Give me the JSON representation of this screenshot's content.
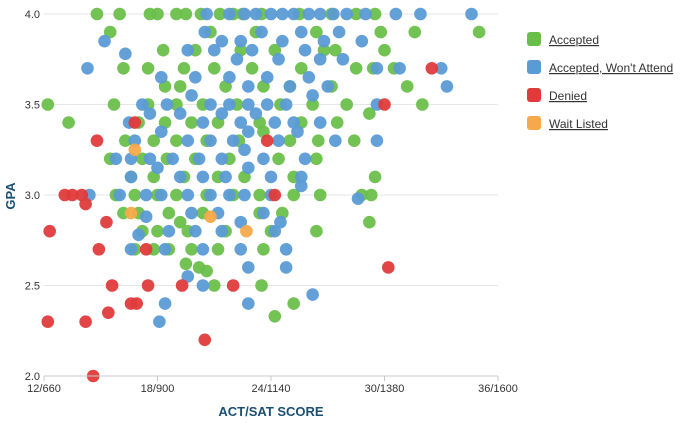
{
  "chart_data": {
    "type": "scatter",
    "title": "",
    "xlabel": "ACT/SAT SCORE",
    "ylabel": "GPA",
    "xlim": [
      12,
      36
    ],
    "ylim": [
      2.0,
      4.0
    ],
    "x_ticks": [
      {
        "value": 12,
        "label": "12/660"
      },
      {
        "value": 18,
        "label": "18/900"
      },
      {
        "value": 24,
        "label": "24/1140"
      },
      {
        "value": 30,
        "label": "30/1380"
      },
      {
        "value": 36,
        "label": "36/1600"
      }
    ],
    "y_ticks": [
      {
        "value": 2.0,
        "label": "2.0"
      },
      {
        "value": 2.5,
        "label": "2.5"
      },
      {
        "value": 3.0,
        "label": "3.0"
      },
      {
        "value": 3.5,
        "label": "3.5"
      },
      {
        "value": 4.0,
        "label": "4.0"
      }
    ],
    "grid": true,
    "legend_position": "right",
    "series": [
      {
        "name": "Accepted",
        "color": "#6abf4b",
        "points": [
          [
            12.2,
            3.5
          ],
          [
            13.3,
            3.4
          ],
          [
            14.8,
            4.0
          ],
          [
            16,
            4.0
          ],
          [
            17.6,
            4.0
          ],
          [
            18,
            4.0
          ],
          [
            19,
            4.0
          ],
          [
            19.5,
            4.0
          ],
          [
            20.3,
            4.0
          ],
          [
            21.3,
            4.0
          ],
          [
            22,
            4.0
          ],
          [
            22.5,
            4.0
          ],
          [
            23.5,
            4.0
          ],
          [
            25.5,
            4.0
          ],
          [
            27.2,
            4.0
          ],
          [
            28.5,
            4.0
          ],
          [
            29.5,
            4.0
          ],
          [
            15.5,
            3.9
          ],
          [
            20.8,
            3.9
          ],
          [
            23.2,
            3.9
          ],
          [
            26.4,
            3.9
          ],
          [
            29.8,
            3.9
          ],
          [
            31.6,
            3.9
          ],
          [
            35,
            3.9
          ],
          [
            18.3,
            3.8
          ],
          [
            20,
            3.8
          ],
          [
            22.4,
            3.8
          ],
          [
            24.2,
            3.8
          ],
          [
            26.8,
            3.8
          ],
          [
            27.4,
            3.8
          ],
          [
            30,
            3.8
          ],
          [
            16.2,
            3.7
          ],
          [
            17.5,
            3.7
          ],
          [
            19.4,
            3.7
          ],
          [
            21,
            3.7
          ],
          [
            23,
            3.7
          ],
          [
            25.6,
            3.7
          ],
          [
            28.5,
            3.7
          ],
          [
            29.4,
            3.7
          ],
          [
            30.5,
            3.7
          ],
          [
            18.4,
            3.6
          ],
          [
            19.2,
            3.6
          ],
          [
            21.6,
            3.6
          ],
          [
            23.6,
            3.6
          ],
          [
            25,
            3.6
          ],
          [
            27.2,
            3.6
          ],
          [
            31.2,
            3.6
          ],
          [
            15.7,
            3.5
          ],
          [
            17.5,
            3.5
          ],
          [
            19,
            3.5
          ],
          [
            20.4,
            3.5
          ],
          [
            22.2,
            3.5
          ],
          [
            24.5,
            3.5
          ],
          [
            26.2,
            3.5
          ],
          [
            28,
            3.5
          ],
          [
            32,
            3.5
          ],
          [
            17,
            3.4
          ],
          [
            18.4,
            3.4
          ],
          [
            19.8,
            3.4
          ],
          [
            21.2,
            3.4
          ],
          [
            23.4,
            3.4
          ],
          [
            25.6,
            3.4
          ],
          [
            27.5,
            3.4
          ],
          [
            29.2,
            3.45
          ],
          [
            16.3,
            3.3
          ],
          [
            17.8,
            3.3
          ],
          [
            19,
            3.3
          ],
          [
            20.6,
            3.3
          ],
          [
            22.3,
            3.3
          ],
          [
            23.6,
            3.35
          ],
          [
            25,
            3.3
          ],
          [
            26.5,
            3.3
          ],
          [
            28.4,
            3.3
          ],
          [
            15.5,
            3.2
          ],
          [
            17.2,
            3.2
          ],
          [
            18.5,
            3.2
          ],
          [
            20,
            3.2
          ],
          [
            21.8,
            3.2
          ],
          [
            24.4,
            3.2
          ],
          [
            26.4,
            3.2
          ],
          [
            16.6,
            3.1
          ],
          [
            17.8,
            3.1
          ],
          [
            19.4,
            3.1
          ],
          [
            21.2,
            3.1
          ],
          [
            22.6,
            3.1
          ],
          [
            25.2,
            3.1
          ],
          [
            29.5,
            3.1
          ],
          [
            15.8,
            3.0
          ],
          [
            16.8,
            3.0
          ],
          [
            18,
            3.0
          ],
          [
            19,
            3.0
          ],
          [
            20.6,
            3.0
          ],
          [
            22,
            3.0
          ],
          [
            23.4,
            3.0
          ],
          [
            25.2,
            3.0
          ],
          [
            26.6,
            3.0
          ],
          [
            28.8,
            3.0
          ],
          [
            29.3,
            3.0
          ],
          [
            16.2,
            2.9
          ],
          [
            17,
            2.9
          ],
          [
            18.6,
            2.9
          ],
          [
            19.2,
            2.85
          ],
          [
            20.4,
            2.9
          ],
          [
            23.4,
            2.9
          ],
          [
            24.6,
            2.9
          ],
          [
            29.2,
            2.85
          ],
          [
            17.2,
            2.8
          ],
          [
            18,
            2.8
          ],
          [
            19.6,
            2.8
          ],
          [
            21.6,
            2.8
          ],
          [
            24,
            2.8
          ],
          [
            26.4,
            2.8
          ],
          [
            16.8,
            2.7
          ],
          [
            17.8,
            2.7
          ],
          [
            18.6,
            2.7
          ],
          [
            19.8,
            2.7
          ],
          [
            21.2,
            2.7
          ],
          [
            23.6,
            2.7
          ],
          [
            19.5,
            2.62
          ],
          [
            20.2,
            2.6
          ],
          [
            20.6,
            2.58
          ],
          [
            21,
            2.5
          ],
          [
            23.5,
            2.5
          ],
          [
            25.2,
            2.4
          ],
          [
            24.2,
            2.33
          ]
        ]
      },
      {
        "name": "Accepted, Won't Attend",
        "color": "#5b9bd5",
        "points": [
          [
            34.6,
            4.0
          ],
          [
            20.6,
            4.0
          ],
          [
            21.8,
            4.0
          ],
          [
            22.6,
            4.0
          ],
          [
            23.2,
            4.0
          ],
          [
            24,
            4.0
          ],
          [
            24.6,
            4.0
          ],
          [
            25.2,
            4.0
          ],
          [
            26,
            4.0
          ],
          [
            26.6,
            4.0
          ],
          [
            27.3,
            4.0
          ],
          [
            28,
            4.0
          ],
          [
            29,
            4.0
          ],
          [
            30.6,
            4.0
          ],
          [
            31.9,
            4.0
          ],
          [
            15.2,
            3.85
          ],
          [
            20.5,
            3.9
          ],
          [
            21.4,
            3.85
          ],
          [
            22.4,
            3.85
          ],
          [
            23.5,
            3.9
          ],
          [
            24.6,
            3.85
          ],
          [
            25.6,
            3.9
          ],
          [
            26.8,
            3.85
          ],
          [
            27.6,
            3.9
          ],
          [
            28.8,
            3.85
          ],
          [
            14.3,
            3.7
          ],
          [
            16.3,
            3.78
          ],
          [
            19.6,
            3.8
          ],
          [
            21,
            3.8
          ],
          [
            22.2,
            3.75
          ],
          [
            23,
            3.8
          ],
          [
            24.4,
            3.75
          ],
          [
            25.8,
            3.8
          ],
          [
            26.6,
            3.75
          ],
          [
            27.8,
            3.75
          ],
          [
            29.6,
            3.7
          ],
          [
            30.8,
            3.7
          ],
          [
            33,
            3.7
          ],
          [
            18.2,
            3.65
          ],
          [
            20,
            3.65
          ],
          [
            21.8,
            3.65
          ],
          [
            22.8,
            3.6
          ],
          [
            23.8,
            3.65
          ],
          [
            25,
            3.6
          ],
          [
            26,
            3.65
          ],
          [
            27,
            3.6
          ],
          [
            17.2,
            3.5
          ],
          [
            18.5,
            3.5
          ],
          [
            19.8,
            3.55
          ],
          [
            20.8,
            3.5
          ],
          [
            21.8,
            3.5
          ],
          [
            22.8,
            3.5
          ],
          [
            23.8,
            3.5
          ],
          [
            24.8,
            3.5
          ],
          [
            26.2,
            3.55
          ],
          [
            29.6,
            3.5
          ],
          [
            33.3,
            3.6
          ],
          [
            16.5,
            3.4
          ],
          [
            17.6,
            3.45
          ],
          [
            19.2,
            3.45
          ],
          [
            20.4,
            3.4
          ],
          [
            21.4,
            3.45
          ],
          [
            22.4,
            3.4
          ],
          [
            23.2,
            3.45
          ],
          [
            24.2,
            3.4
          ],
          [
            25.2,
            3.4
          ],
          [
            26.6,
            3.4
          ],
          [
            16.8,
            3.3
          ],
          [
            18.2,
            3.35
          ],
          [
            19.6,
            3.3
          ],
          [
            20.8,
            3.3
          ],
          [
            22,
            3.3
          ],
          [
            22.8,
            3.35
          ],
          [
            24.4,
            3.3
          ],
          [
            25.4,
            3.35
          ],
          [
            27.4,
            3.3
          ],
          [
            29.6,
            3.3
          ],
          [
            15.8,
            3.2
          ],
          [
            16.6,
            3.2
          ],
          [
            17.6,
            3.2
          ],
          [
            18.8,
            3.2
          ],
          [
            20.2,
            3.2
          ],
          [
            21.4,
            3.2
          ],
          [
            22.6,
            3.25
          ],
          [
            23.6,
            3.2
          ],
          [
            25.8,
            3.2
          ],
          [
            16.6,
            3.1
          ],
          [
            18,
            3.15
          ],
          [
            19.2,
            3.1
          ],
          [
            20.4,
            3.1
          ],
          [
            21.6,
            3.1
          ],
          [
            22.8,
            3.15
          ],
          [
            24,
            3.1
          ],
          [
            25.6,
            3.1
          ],
          [
            14.4,
            3.0
          ],
          [
            16,
            3.0
          ],
          [
            17.4,
            3.0
          ],
          [
            18.2,
            3.0
          ],
          [
            19.6,
            3.0
          ],
          [
            20.8,
            3.0
          ],
          [
            21.8,
            3.0
          ],
          [
            22.6,
            3.0
          ],
          [
            24,
            3.0
          ],
          [
            25.6,
            3.05
          ],
          [
            28.6,
            2.98
          ],
          [
            17.4,
            2.88
          ],
          [
            19.8,
            2.9
          ],
          [
            21.2,
            2.9
          ],
          [
            22.4,
            2.85
          ],
          [
            23.6,
            2.9
          ],
          [
            24.5,
            2.85
          ],
          [
            17,
            2.78
          ],
          [
            18.6,
            2.8
          ],
          [
            20,
            2.8
          ],
          [
            21.4,
            2.8
          ],
          [
            24.2,
            2.8
          ],
          [
            16.6,
            2.7
          ],
          [
            18.4,
            2.7
          ],
          [
            20.4,
            2.7
          ],
          [
            22.4,
            2.7
          ],
          [
            24.8,
            2.7
          ],
          [
            19.6,
            2.55
          ],
          [
            20.4,
            2.5
          ],
          [
            22.8,
            2.6
          ],
          [
            24.8,
            2.6
          ],
          [
            18.4,
            2.4
          ],
          [
            18.1,
            2.3
          ],
          [
            22.8,
            2.4
          ],
          [
            26.2,
            2.45
          ]
        ]
      },
      {
        "name": "Denied",
        "color": "#e03b3b",
        "points": [
          [
            12.2,
            2.3
          ],
          [
            12.3,
            2.8
          ],
          [
            13.1,
            3.0
          ],
          [
            13.5,
            3.0
          ],
          [
            14,
            3.0
          ],
          [
            14.2,
            2.95
          ],
          [
            14.8,
            3.3
          ],
          [
            15.3,
            2.85
          ],
          [
            14.9,
            2.7
          ],
          [
            15.6,
            2.5
          ],
          [
            14.2,
            2.3
          ],
          [
            15.4,
            2.35
          ],
          [
            14.6,
            2.0
          ],
          [
            16.6,
            2.4
          ],
          [
            16.9,
            2.4
          ],
          [
            17.5,
            2.5
          ],
          [
            17.4,
            2.7
          ],
          [
            16.8,
            3.4
          ],
          [
            19.3,
            2.5
          ],
          [
            20.5,
            2.2
          ],
          [
            22,
            2.5
          ],
          [
            23.8,
            3.3
          ],
          [
            24.2,
            3.0
          ],
          [
            30,
            3.5
          ],
          [
            30.2,
            2.6
          ],
          [
            32.5,
            3.7
          ]
        ]
      },
      {
        "name": "Wait Listed",
        "color": "#f5a94a",
        "points": [
          [
            16.6,
            2.9
          ],
          [
            20.8,
            2.88
          ],
          [
            22.7,
            2.8
          ],
          [
            16.8,
            3.25
          ]
        ]
      }
    ]
  }
}
